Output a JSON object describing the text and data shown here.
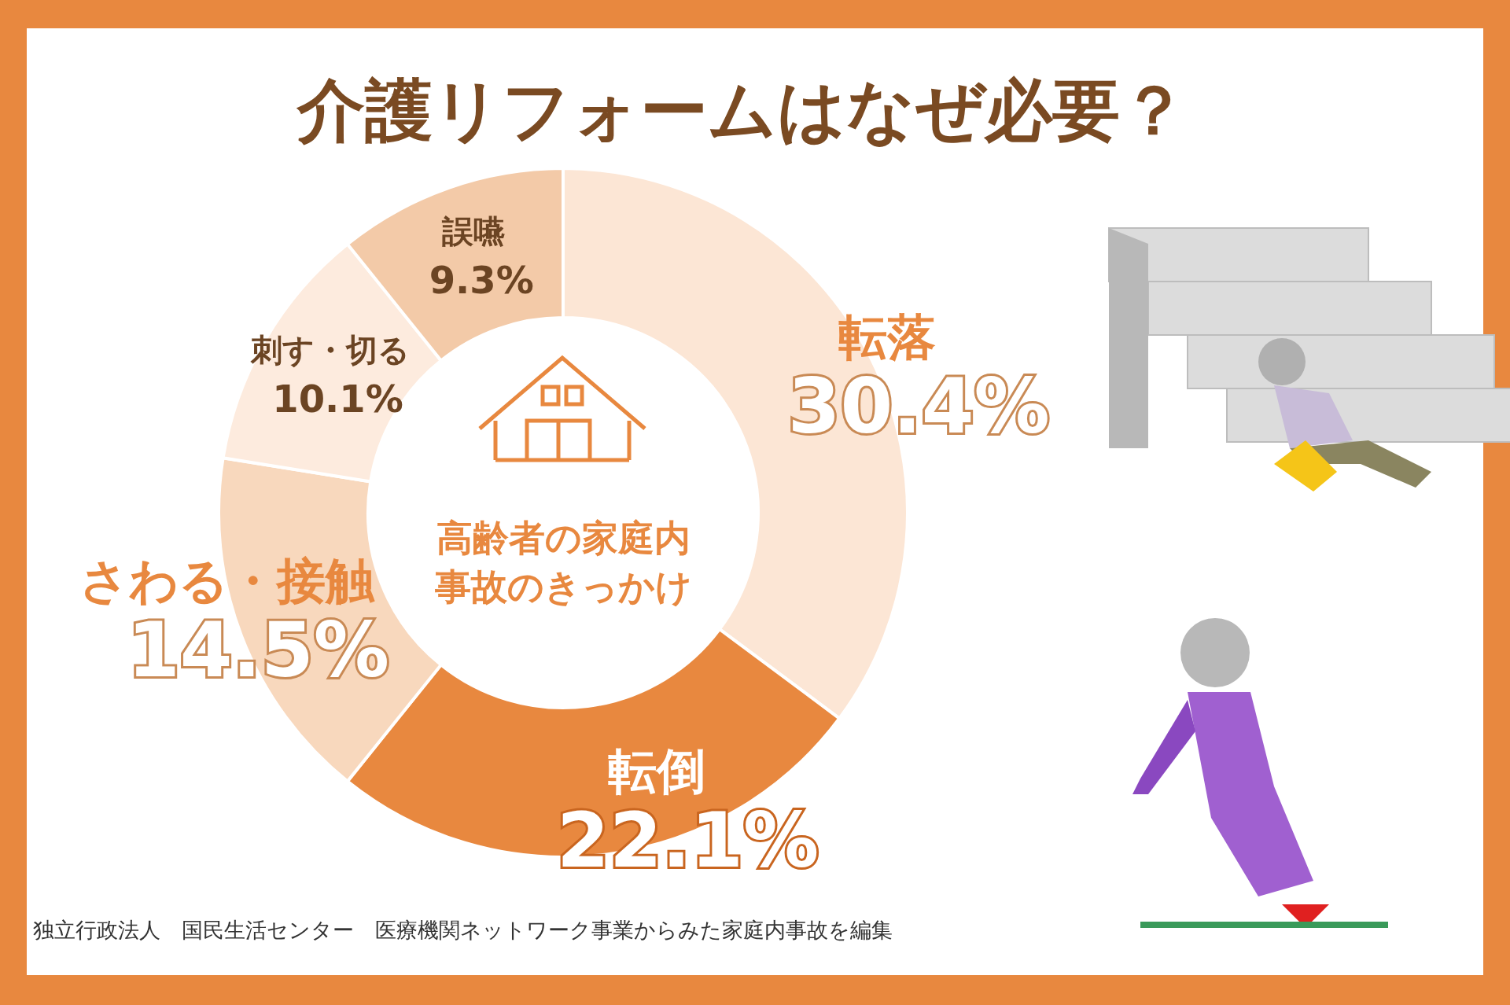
{
  "chart_data": {
    "type": "donut",
    "title": "介護リフォームはなぜ必要？",
    "subtitle": "高齢者の家庭内事故のきっかけ",
    "categories": [
      "転落",
      "転倒",
      "さわる・接触",
      "刺す・切る",
      "誤嚥"
    ],
    "values": [
      30.4,
      22.1,
      14.5,
      10.1,
      9.3
    ],
    "value_labels": [
      "30.4%",
      "22.1%",
      "14.5%",
      "10.1%",
      "9.3%"
    ],
    "colors": [
      "#fce6d5",
      "#e8883f",
      "#f8d8bd",
      "#fdebde",
      "#f3caa8"
    ],
    "annotations": [
      "独立行政法人　国民生活センター　医療機関ネットワーク事業からみた家庭内事故を編集"
    ]
  }
}
